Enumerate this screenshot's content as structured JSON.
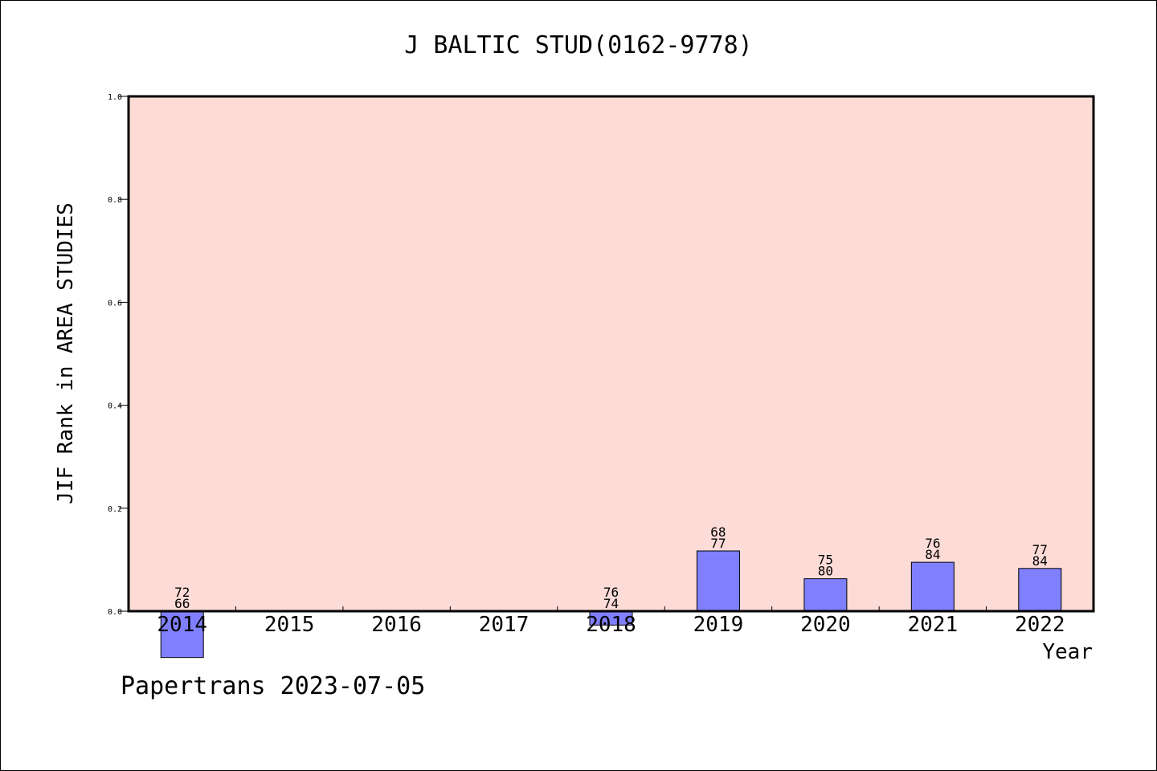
{
  "chart_data": {
    "type": "bar",
    "title": "J BALTIC STUD(0162-9778)",
    "xlabel": "Year",
    "ylabel": "JIF Rank in AREA STUDIES",
    "ylim": [
      0.0,
      1.0
    ],
    "yticks": [
      "0.0",
      "0.2",
      "0.4",
      "0.6",
      "0.8",
      "1.0"
    ],
    "categories": [
      "2014",
      "2015",
      "2016",
      "2017",
      "2018",
      "2019",
      "2020",
      "2021",
      "2022"
    ],
    "values": [
      -0.09,
      null,
      null,
      null,
      -0.027,
      0.117,
      0.063,
      0.095,
      0.083
    ],
    "labels_top": [
      "72",
      "",
      "",
      "",
      "76",
      "68",
      "75",
      "76",
      "77"
    ],
    "labels_bottom": [
      "66",
      "",
      "",
      "",
      "74",
      "77",
      "80",
      "84",
      "84"
    ],
    "plot_background": "#fddbd7",
    "bar_color": "#8080ff",
    "grid": false
  },
  "footer": "Papertrans 2023-07-05"
}
